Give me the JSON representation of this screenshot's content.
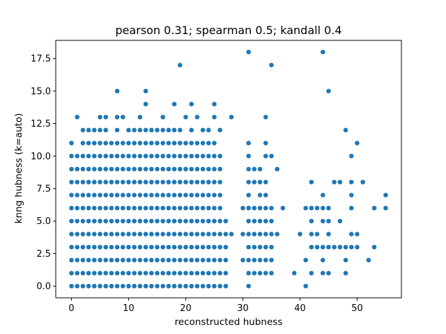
{
  "chart_data": {
    "type": "scatter",
    "title": "pearson 0.31; spearman 0.5; kandall 0.4",
    "xlabel": "reconstructed hubness",
    "ylabel": "knng hubness (k=auto)",
    "xlim": [
      -2.75,
      57.75
    ],
    "ylim": [
      -0.9,
      18.9
    ],
    "xticks": [
      0,
      10,
      20,
      30,
      40,
      50
    ],
    "yticks": [
      0.0,
      2.5,
      5.0,
      7.5,
      10.0,
      12.5,
      15.0,
      17.5
    ],
    "xtick_labels": [
      "0",
      "10",
      "20",
      "30",
      "40",
      "50"
    ],
    "ytick_labels": [
      "0.0",
      "2.5",
      "5.0",
      "7.5",
      "10.0",
      "12.5",
      "15.0",
      "17.5"
    ],
    "grid": false,
    "legend": "none",
    "point_color": "#1f77b4",
    "dense_region": {
      "x_from": 0,
      "x_to": 26,
      "y_from": 0,
      "y_to": 11
    },
    "dense_gaps": [
      [
        26,
        11
      ],
      [
        1,
        11
      ]
    ],
    "sparse_points": [
      [
        1,
        13
      ],
      [
        2,
        12
      ],
      [
        3,
        12
      ],
      [
        4,
        12
      ],
      [
        5,
        12
      ],
      [
        5,
        13
      ],
      [
        6,
        12
      ],
      [
        6,
        13
      ],
      [
        8,
        12
      ],
      [
        8,
        13
      ],
      [
        8,
        15
      ],
      [
        9,
        13
      ],
      [
        10,
        12
      ],
      [
        11,
        12
      ],
      [
        12,
        12
      ],
      [
        12,
        13
      ],
      [
        13,
        12
      ],
      [
        13,
        14
      ],
      [
        13,
        15
      ],
      [
        14,
        12
      ],
      [
        15,
        12
      ],
      [
        16,
        12
      ],
      [
        16,
        13
      ],
      [
        17,
        12
      ],
      [
        18,
        12
      ],
      [
        18,
        14
      ],
      [
        19,
        12
      ],
      [
        19,
        17
      ],
      [
        20,
        13
      ],
      [
        21,
        12
      ],
      [
        21,
        14
      ],
      [
        22,
        13
      ],
      [
        23,
        12
      ],
      [
        24,
        12
      ],
      [
        25,
        13
      ],
      [
        25,
        14
      ],
      [
        26,
        12
      ],
      [
        27,
        0
      ],
      [
        27,
        1
      ],
      [
        27,
        2
      ],
      [
        27,
        3
      ],
      [
        27,
        4
      ],
      [
        27,
        5
      ],
      [
        28,
        4
      ],
      [
        28,
        13
      ],
      [
        30,
        2
      ],
      [
        30,
        4
      ],
      [
        30,
        6
      ],
      [
        31,
        0
      ],
      [
        31,
        1
      ],
      [
        31,
        2
      ],
      [
        31,
        3
      ],
      [
        31,
        4
      ],
      [
        31,
        5
      ],
      [
        31,
        6
      ],
      [
        31,
        7
      ],
      [
        31,
        8
      ],
      [
        31,
        9
      ],
      [
        31,
        10
      ],
      [
        31,
        11
      ],
      [
        31,
        18
      ],
      [
        32,
        1
      ],
      [
        32,
        2
      ],
      [
        32,
        3
      ],
      [
        32,
        4
      ],
      [
        32,
        5
      ],
      [
        32,
        6
      ],
      [
        32,
        8
      ],
      [
        32,
        9
      ],
      [
        33,
        1
      ],
      [
        33,
        2
      ],
      [
        33,
        3
      ],
      [
        33,
        4
      ],
      [
        33,
        5
      ],
      [
        33,
        6
      ],
      [
        33,
        7
      ],
      [
        33,
        8
      ],
      [
        33,
        9
      ],
      [
        34,
        1
      ],
      [
        34,
        2
      ],
      [
        34,
        3
      ],
      [
        34,
        4
      ],
      [
        34,
        5
      ],
      [
        34,
        6
      ],
      [
        34,
        7
      ],
      [
        34,
        8
      ],
      [
        34,
        10
      ],
      [
        34,
        11
      ],
      [
        34,
        13
      ],
      [
        35,
        1
      ],
      [
        35,
        2
      ],
      [
        35,
        3
      ],
      [
        35,
        4
      ],
      [
        35,
        5
      ],
      [
        35,
        6
      ],
      [
        35,
        10
      ],
      [
        35,
        17
      ],
      [
        36,
        4
      ],
      [
        36,
        9
      ],
      [
        37,
        6
      ],
      [
        39,
        1
      ],
      [
        40,
        4
      ],
      [
        41,
        0
      ],
      [
        41,
        2
      ],
      [
        41,
        6
      ],
      [
        42,
        1
      ],
      [
        42,
        3
      ],
      [
        42,
        4
      ],
      [
        42,
        5
      ],
      [
        42,
        6
      ],
      [
        42,
        8
      ],
      [
        43,
        3
      ],
      [
        43,
        4
      ],
      [
        43,
        6
      ],
      [
        44,
        1
      ],
      [
        44,
        2
      ],
      [
        44,
        3
      ],
      [
        44,
        5
      ],
      [
        44,
        6
      ],
      [
        44,
        7
      ],
      [
        44,
        18
      ],
      [
        45,
        1
      ],
      [
        45,
        3
      ],
      [
        45,
        4
      ],
      [
        45,
        5
      ],
      [
        45,
        6
      ],
      [
        45,
        15
      ],
      [
        46,
        3
      ],
      [
        46,
        8
      ],
      [
        47,
        3
      ],
      [
        47,
        5
      ],
      [
        47,
        8
      ],
      [
        48,
        1
      ],
      [
        48,
        2
      ],
      [
        48,
        3
      ],
      [
        48,
        12
      ],
      [
        49,
        3
      ],
      [
        49,
        4
      ],
      [
        49,
        6
      ],
      [
        49,
        7
      ],
      [
        49,
        8
      ],
      [
        49,
        10
      ],
      [
        50,
        3
      ],
      [
        50,
        4
      ],
      [
        50,
        11
      ],
      [
        51,
        8
      ],
      [
        52,
        2
      ],
      [
        53,
        3
      ],
      [
        53,
        6
      ],
      [
        55,
        6
      ],
      [
        55,
        7
      ]
    ]
  }
}
